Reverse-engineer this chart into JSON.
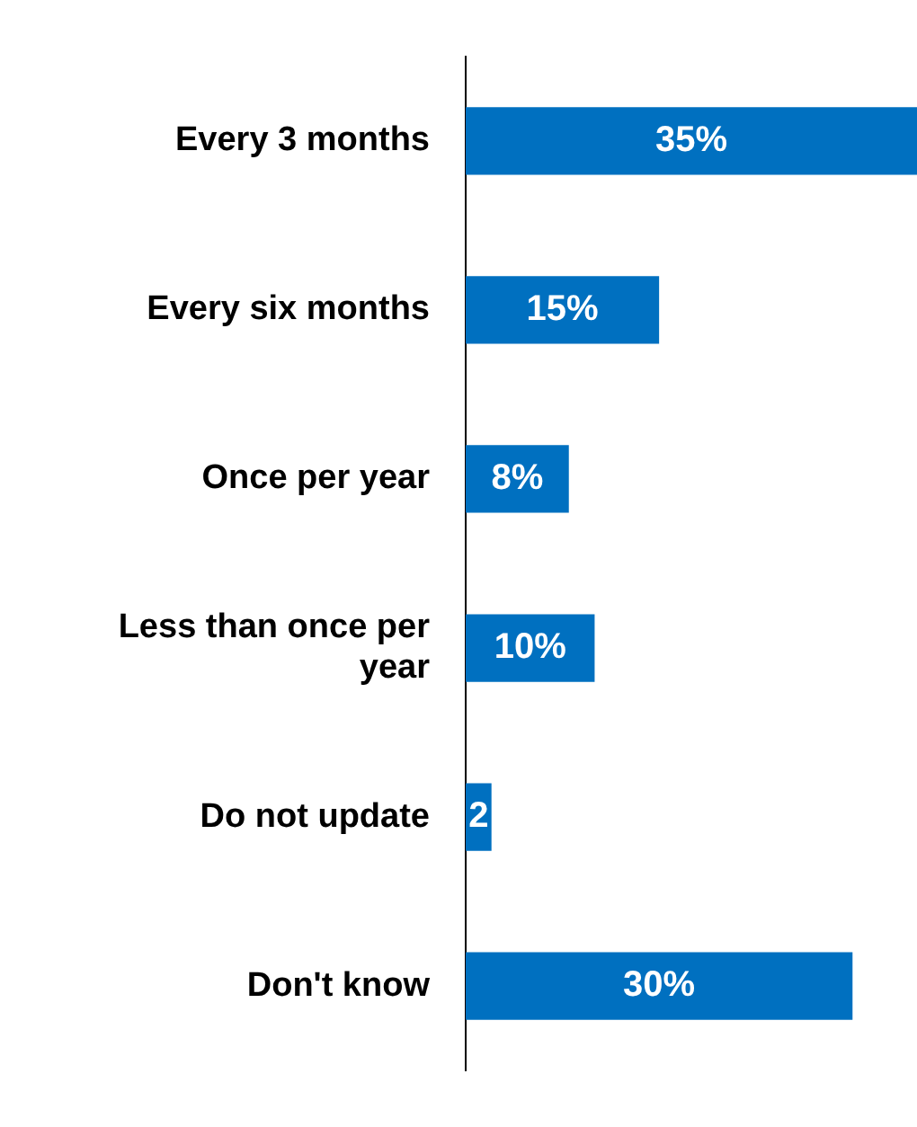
{
  "chart_data": {
    "type": "bar",
    "orientation": "horizontal",
    "categories": [
      "Every 3 months",
      "Every six months",
      "Once per year",
      "Less than once per year",
      "Do not update",
      "Don't know"
    ],
    "values": [
      35,
      15,
      8,
      10,
      2,
      30
    ],
    "color": "#0070c0",
    "value_labels": [
      "35%",
      "15%",
      "8%",
      "10%",
      "2",
      "30%"
    ],
    "grid": false,
    "legend": false
  }
}
